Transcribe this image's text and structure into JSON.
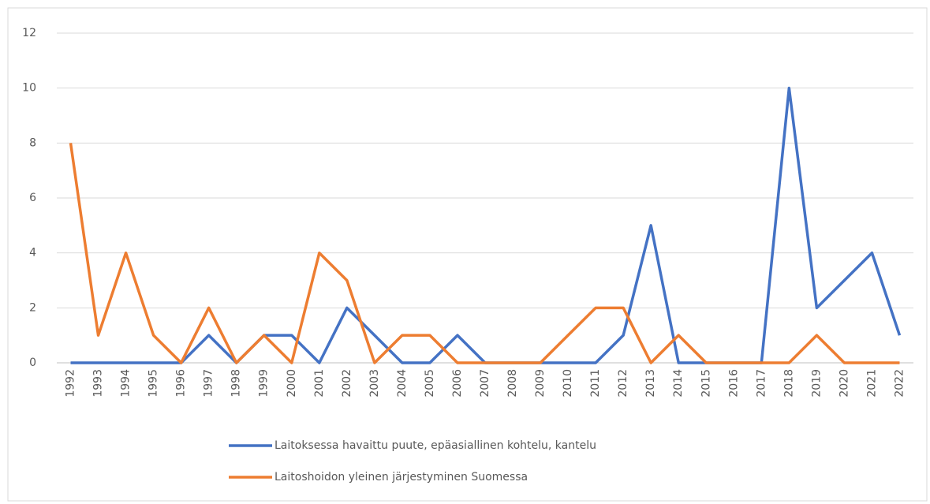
{
  "chart_data": {
    "type": "line",
    "categories": [
      "1992",
      "1993",
      "1994",
      "1995",
      "1996",
      "1997",
      "1998",
      "1999",
      "2000",
      "2001",
      "2002",
      "2003",
      "2004",
      "2005",
      "2006",
      "2007",
      "2008",
      "2009",
      "2010",
      "2011",
      "2012",
      "2013",
      "2014",
      "2015",
      "2016",
      "2017",
      "2018",
      "2019",
      "2020",
      "2021",
      "2022"
    ],
    "series": [
      {
        "name": "Laitoksessa havaittu puute, epäasiallinen kohtelu, kantelu",
        "color": "#4472c4",
        "values": [
          0,
          0,
          0,
          0,
          0,
          1,
          0,
          1,
          1,
          0,
          2,
          1,
          0,
          0,
          1,
          0,
          0,
          0,
          0,
          0,
          1,
          5,
          0,
          0,
          0,
          0,
          10,
          2,
          3,
          4,
          1
        ]
      },
      {
        "name": "Laitoshoidon yleinen järjestyminen Suomessa",
        "color": "#ed7d31",
        "values": [
          8,
          1,
          4,
          1,
          0,
          2,
          0,
          1,
          0,
          4,
          3,
          0,
          1,
          1,
          0,
          0,
          0,
          0,
          1,
          2,
          2,
          0,
          1,
          0,
          0,
          0,
          0,
          1,
          0,
          0,
          0
        ]
      }
    ],
    "ylim": [
      0,
      12
    ],
    "yticks": [
      0,
      2,
      4,
      6,
      8,
      10,
      12
    ],
    "grid": true,
    "legend": "bottom"
  }
}
